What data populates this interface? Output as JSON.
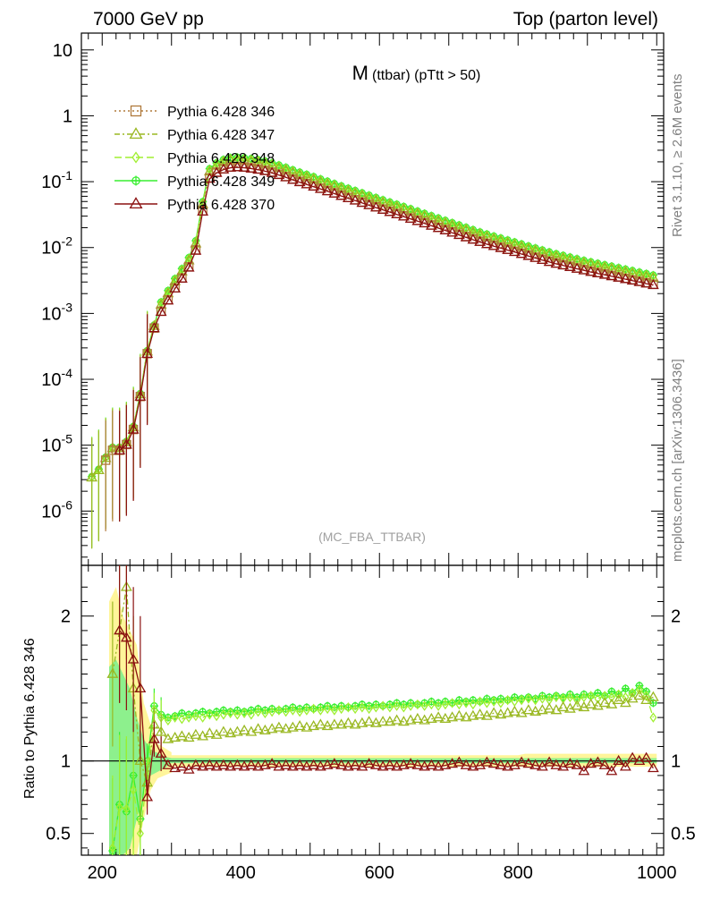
{
  "header": {
    "left": "7000 GeV pp",
    "right": "Top (parton level)"
  },
  "side_labels": {
    "top": "Rivet 3.1.10, ≥ 2.6M events",
    "bottom": "mcplots.cern.ch [arXiv:1306.3436]"
  },
  "watermark": "(MC_FBA_TTBAR)",
  "plot_title": {
    "main": "M",
    "sub": "(ttbar) (pTtt > 50)"
  },
  "ratio_ylabel": "Ratio to Pythia 6.428 346",
  "colors": {
    "s346": "#b07a3c",
    "s347": "#9ab822",
    "s348": "#a0ef30",
    "s349": "#38ee30",
    "s370": "#8b1010",
    "band_yellow": "#fff59a",
    "band_green": "#8df08d"
  },
  "chart_data": [
    {
      "type": "line",
      "panel": "main",
      "yscale": "log",
      "xlim": [
        170,
        1010
      ],
      "ylim": [
        1.5e-07,
        18
      ],
      "x_ticks": [
        200,
        400,
        600,
        800,
        1000
      ],
      "y_tick_labels": [
        "10",
        "1",
        "10^-1",
        "10^-2",
        "10^-3",
        "10^-4",
        "10^-5",
        "10^-6"
      ],
      "legend": [
        "Pythia 6.428 346",
        "Pythia 6.428 347",
        "Pythia 6.428 348",
        "Pythia 6.428 349",
        "Pythia 6.428 370"
      ],
      "legend_position": "top-left",
      "shape": {
        "comment_free": true,
        "knots_x": [
          190,
          200,
          210,
          220,
          230,
          240,
          250,
          260,
          270,
          280,
          290,
          300,
          310,
          320,
          330,
          340,
          350,
          360,
          370,
          380,
          390,
          400,
          420,
          440,
          460,
          480,
          500,
          550,
          600,
          650,
          700,
          750,
          800,
          850,
          900,
          950,
          1000
        ],
        "knots_y_346": [
          3e-06,
          5e-06,
          7e-06,
          1e-05,
          7e-06,
          1.5e-05,
          2e-05,
          0.00015,
          0.0004,
          0.0009,
          0.0013,
          0.002,
          0.003,
          0.004,
          0.0065,
          0.013,
          0.1,
          0.13,
          0.15,
          0.165,
          0.17,
          0.17,
          0.16,
          0.145,
          0.125,
          0.105,
          0.09,
          0.06,
          0.04,
          0.027,
          0.018,
          0.012,
          0.0085,
          0.006,
          0.0045,
          0.0035,
          0.0027
        ]
      },
      "series": [
        {
          "name": "Pythia 6.428 346",
          "marker": "square",
          "scale": 1.0
        },
        {
          "name": "Pythia 6.428 347",
          "marker": "triangle",
          "scale": 1.25
        },
        {
          "name": "Pythia 6.428 348",
          "marker": "diamond",
          "scale": 1.32
        },
        {
          "name": "Pythia 6.428 349",
          "marker": "cross",
          "scale": 1.38
        },
        {
          "name": "Pythia 6.428 370",
          "marker": "triangle",
          "scale": 0.97
        }
      ]
    },
    {
      "type": "line",
      "panel": "ratio",
      "xlim": [
        170,
        1010
      ],
      "ylim": [
        0.35,
        2.35
      ],
      "x_ticks": [
        200,
        400,
        600,
        800,
        1000
      ],
      "y_ticks": [
        0.5,
        1,
        2
      ],
      "y_tick_labels": [
        "0.5",
        "1",
        "2"
      ],
      "x": [
        205,
        215,
        225,
        235,
        245,
        255,
        265,
        275,
        285,
        295,
        305,
        315,
        325,
        335,
        345,
        355,
        365,
        375,
        385,
        395,
        405,
        415,
        425,
        435,
        445,
        455,
        465,
        475,
        485,
        495,
        505,
        515,
        525,
        535,
        545,
        555,
        565,
        575,
        585,
        595,
        605,
        615,
        625,
        635,
        645,
        655,
        665,
        675,
        685,
        695,
        705,
        715,
        725,
        735,
        745,
        755,
        765,
        775,
        785,
        795,
        805,
        815,
        825,
        835,
        845,
        855,
        865,
        875,
        885,
        895,
        905,
        915,
        925,
        935,
        945,
        955,
        965,
        975,
        985,
        995
      ],
      "series": [
        {
          "name": "Pythia 6.428 347",
          "values": [
            null,
            1.6,
            1.9,
            2.2,
            1.5,
            1.0,
            0.85,
            1.25,
            1.2,
            1.15,
            1.16,
            1.17,
            1.16,
            1.18,
            1.17,
            1.19,
            1.18,
            1.2,
            1.19,
            1.2,
            1.21,
            1.2,
            1.22,
            1.21,
            1.22,
            1.23,
            1.22,
            1.23,
            1.24,
            1.23,
            1.24,
            1.25,
            1.24,
            1.25,
            1.25,
            1.26,
            1.25,
            1.26,
            1.27,
            1.26,
            1.27,
            1.27,
            1.28,
            1.27,
            1.28,
            1.29,
            1.28,
            1.29,
            1.3,
            1.29,
            1.3,
            1.31,
            1.3,
            1.31,
            1.32,
            1.31,
            1.33,
            1.32,
            1.33,
            1.34,
            1.33,
            1.35,
            1.34,
            1.35,
            1.36,
            1.35,
            1.37,
            1.36,
            1.38,
            1.37,
            1.39,
            1.38,
            1.4,
            1.39,
            1.42,
            1.4,
            1.43,
            1.45,
            1.42,
            1.44
          ]
        },
        {
          "name": "Pythia 6.428 348",
          "values": [
            null,
            0.4,
            0.68,
            0.67,
            0.8,
            0.5,
            0.9,
            1.35,
            1.3,
            1.28,
            1.3,
            1.29,
            1.3,
            1.31,
            1.3,
            1.32,
            1.31,
            1.32,
            1.33,
            1.32,
            1.33,
            1.32,
            1.34,
            1.33,
            1.34,
            1.35,
            1.34,
            1.35,
            1.34,
            1.35,
            1.36,
            1.35,
            1.36,
            1.35,
            1.36,
            1.37,
            1.36,
            1.37,
            1.36,
            1.37,
            1.38,
            1.37,
            1.38,
            1.37,
            1.38,
            1.39,
            1.38,
            1.39,
            1.38,
            1.39,
            1.4,
            1.39,
            1.4,
            1.39,
            1.41,
            1.4,
            1.41,
            1.4,
            1.42,
            1.41,
            1.42,
            1.43,
            1.42,
            1.43,
            1.42,
            1.44,
            1.43,
            1.44,
            1.42,
            1.44,
            1.45,
            1.43,
            1.45,
            1.44,
            1.46,
            1.44,
            1.47,
            1.49,
            1.45,
            1.3
          ]
        },
        {
          "name": "Pythia 6.428 349",
          "values": [
            null,
            0.38,
            0.7,
            0.65,
            0.9,
            0.6,
            1.0,
            1.38,
            1.32,
            1.3,
            1.31,
            1.33,
            1.32,
            1.33,
            1.34,
            1.33,
            1.34,
            1.35,
            1.34,
            1.35,
            1.34,
            1.35,
            1.36,
            1.35,
            1.36,
            1.35,
            1.36,
            1.37,
            1.36,
            1.37,
            1.36,
            1.37,
            1.38,
            1.37,
            1.38,
            1.37,
            1.38,
            1.39,
            1.38,
            1.39,
            1.38,
            1.39,
            1.4,
            1.39,
            1.4,
            1.39,
            1.4,
            1.41,
            1.4,
            1.41,
            1.4,
            1.42,
            1.41,
            1.42,
            1.41,
            1.43,
            1.42,
            1.43,
            1.42,
            1.44,
            1.43,
            1.44,
            1.43,
            1.45,
            1.44,
            1.45,
            1.44,
            1.46,
            1.44,
            1.46,
            1.45,
            1.47,
            1.45,
            1.48,
            1.46,
            1.5,
            1.47,
            1.52,
            1.48,
            1.4
          ]
        },
        {
          "name": "Pythia 6.428 370",
          "values": [
            null,
            null,
            1.9,
            1.85,
            1.7,
            1.5,
            0.75,
            1.15,
            1.05,
            0.97,
            0.95,
            0.96,
            0.94,
            0.97,
            0.96,
            0.97,
            0.96,
            0.97,
            0.96,
            0.97,
            0.96,
            0.97,
            0.96,
            0.97,
            0.98,
            0.96,
            0.97,
            0.96,
            0.97,
            0.96,
            0.97,
            0.96,
            0.97,
            0.98,
            0.97,
            0.96,
            0.97,
            0.96,
            0.98,
            0.97,
            0.96,
            0.97,
            0.96,
            0.97,
            0.98,
            0.97,
            0.96,
            0.97,
            0.96,
            0.97,
            0.98,
            0.99,
            0.97,
            0.96,
            0.97,
            0.99,
            0.98,
            0.97,
            0.96,
            0.97,
            0.99,
            0.98,
            0.97,
            0.96,
            0.99,
            0.97,
            0.96,
            0.98,
            0.97,
            0.93,
            0.98,
            0.99,
            0.97,
            0.93,
            1.0,
            0.96,
            1.02,
            1.0,
            1.02,
            0.95
          ]
        }
      ]
    }
  ]
}
